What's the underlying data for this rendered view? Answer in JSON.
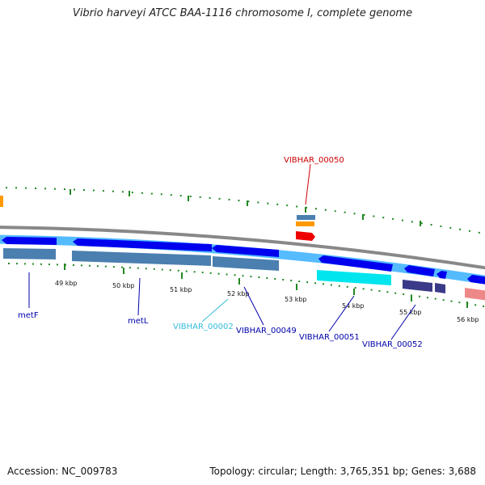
{
  "title": "Vibrio harveyi ATCC BAA-1116 chromosome I, complete genome",
  "footer": {
    "accession": "Accession: NC_009783",
    "summary": "Topology: circular; Length: 3,765,351 bp; Genes: 3,688"
  },
  "scale_labels": [
    "49 kbp",
    "50 kbp",
    "51 kbp",
    "52 kbp",
    "53 kbp",
    "54 kbp",
    "55 kbp",
    "56 kbp"
  ],
  "gene_labels": [
    {
      "text": "VIBHAR_00050",
      "color": "#cc0000"
    },
    {
      "text": "metF",
      "color": "#0000aa"
    },
    {
      "text": "metL",
      "color": "#0000aa"
    },
    {
      "text": "VIBHAR_00002",
      "color": "#33bbdd"
    },
    {
      "text": "VIBHAR_00049",
      "color": "#0000aa"
    },
    {
      "text": "VIBHAR_00051",
      "color": "#0000aa"
    },
    {
      "text": "VIBHAR_00052",
      "color": "#0000aa"
    }
  ],
  "colors": {
    "backbone": "#888888",
    "ticks": "#228822",
    "cds": "#0000ee",
    "cds_light": "#55bbff",
    "track_blue": "#4a7fb0",
    "cyan": "#00e5ee",
    "navy": "#3a3a88",
    "salmon": "#ee8888",
    "red": "#ee0000",
    "orange": "#ff9900"
  }
}
